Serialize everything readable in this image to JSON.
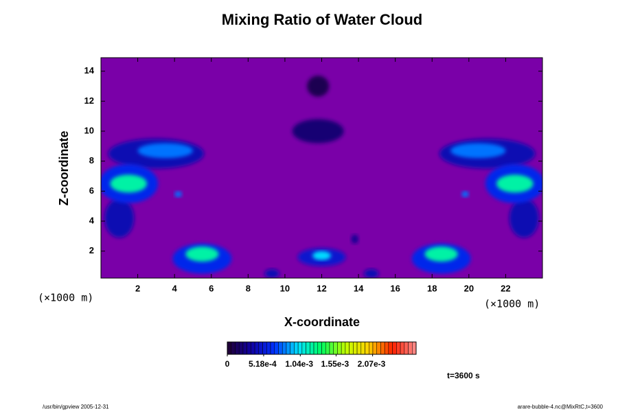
{
  "chart_data": {
    "type": "contour",
    "title": "Mixing Ratio of Water Cloud",
    "xlabel": "X-coordinate",
    "ylabel": "Z-coordinate",
    "x_unit": "(×1000 m)",
    "y_unit": "(×1000 m)",
    "xlim": [
      0,
      24
    ],
    "ylim": [
      0.2,
      14.9
    ],
    "xticks": [
      2,
      4,
      6,
      8,
      10,
      12,
      14,
      16,
      18,
      20,
      22
    ],
    "yticks": [
      2,
      4,
      6,
      8,
      10,
      12,
      14
    ],
    "background": "#7a00a8",
    "clim": [
      0,
      0.00269
    ],
    "colormap": [
      "#200030",
      "#1000a0",
      "#0030ff",
      "#00e0ff",
      "#00ff60",
      "#c0ff00",
      "#ffd000",
      "#ff2000",
      "#ff9090"
    ],
    "cticks": [
      0,
      {
        "value": 0.000518,
        "label": "5.18e-4"
      },
      {
        "value": 0.00104,
        "label": "1.04e-3"
      },
      {
        "value": 0.00155,
        "label": "1.55e-3"
      },
      {
        "value": 0.00207,
        "label": "2.07e-3"
      }
    ],
    "regions": [
      {
        "x": 11.8,
        "z": 13.0,
        "rx": 0.6,
        "rz": 0.7,
        "value": 0.0001
      },
      {
        "x": 11.8,
        "z": 10.0,
        "rx": 1.4,
        "rz": 0.8,
        "value": 0.0002
      },
      {
        "x": 3.0,
        "z": 8.5,
        "rx": 2.6,
        "rz": 1.0,
        "value": 0.0004
      },
      {
        "x": 21.0,
        "z": 8.5,
        "rx": 2.6,
        "rz": 1.0,
        "value": 0.0004
      },
      {
        "x": 1.0,
        "z": 4.2,
        "rx": 0.8,
        "rz": 1.3,
        "value": 0.0004
      },
      {
        "x": 23.0,
        "z": 4.2,
        "rx": 0.8,
        "rz": 1.3,
        "value": 0.0004
      },
      {
        "x": 1.5,
        "z": 6.5,
        "rx": 1.6,
        "rz": 1.3,
        "value": 0.0006
      },
      {
        "x": 22.5,
        "z": 6.5,
        "rx": 1.6,
        "rz": 1.3,
        "value": 0.0006
      },
      {
        "x": 5.5,
        "z": 1.5,
        "rx": 1.6,
        "rz": 1.0,
        "value": 0.0006
      },
      {
        "x": 18.5,
        "z": 1.5,
        "rx": 1.6,
        "rz": 1.0,
        "value": 0.0006
      },
      {
        "x": 12.0,
        "z": 1.6,
        "rx": 1.3,
        "rz": 0.6,
        "value": 0.0005
      },
      {
        "x": 9.3,
        "z": 0.5,
        "rx": 0.4,
        "rz": 0.3,
        "value": 0.0004
      },
      {
        "x": 14.7,
        "z": 0.5,
        "rx": 0.4,
        "rz": 0.3,
        "value": 0.0004
      },
      {
        "x": 13.8,
        "z": 2.8,
        "rx": 0.2,
        "rz": 0.3,
        "value": 0.0003
      },
      {
        "x": 4.2,
        "z": 5.8,
        "rx": 0.2,
        "rz": 0.2,
        "value": 0.0008
      },
      {
        "x": 19.8,
        "z": 5.8,
        "rx": 0.2,
        "rz": 0.2,
        "value": 0.0008
      },
      {
        "x": 3.5,
        "z": 8.7,
        "rx": 1.5,
        "rz": 0.5,
        "value": 0.0008
      },
      {
        "x": 20.5,
        "z": 8.7,
        "rx": 1.5,
        "rz": 0.5,
        "value": 0.0008
      },
      {
        "x": 1.5,
        "z": 6.5,
        "rx": 1.0,
        "rz": 0.6,
        "value": 0.0012
      },
      {
        "x": 22.5,
        "z": 6.5,
        "rx": 1.0,
        "rz": 0.6,
        "value": 0.0012
      },
      {
        "x": 5.5,
        "z": 1.8,
        "rx": 0.9,
        "rz": 0.5,
        "value": 0.0012
      },
      {
        "x": 18.5,
        "z": 1.8,
        "rx": 0.9,
        "rz": 0.5,
        "value": 0.0012
      },
      {
        "x": 12.0,
        "z": 1.7,
        "rx": 0.5,
        "rz": 0.3,
        "value": 0.001
      }
    ],
    "time_label": "t=3600 s",
    "footer_left": "/usr/bin/gpview 2005-12-31",
    "footer_right": "arare-bubble-4.nc@MixRtC,t=3600"
  }
}
